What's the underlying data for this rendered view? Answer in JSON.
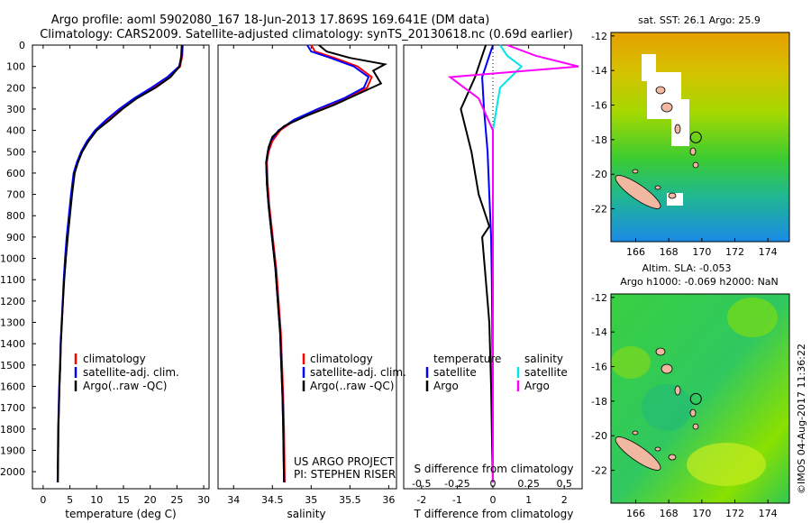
{
  "header": {
    "line1": "Argo profile: aoml 5902080_167 18-Jun-2013 17.869S 169.641E (DM data)",
    "line2": "Climatology: CARS2009. Satellite-adjusted climatology: synTS_20130618.nc (0.69d earlier)"
  },
  "colors": {
    "climatology": "#ff0000",
    "satellite": "#0000ff",
    "argo": "#000000",
    "salinity_satellite": "#00e5e5",
    "salinity_argo": "#ff00ff"
  },
  "depth_axis": {
    "ticks": [
      0,
      100,
      200,
      300,
      400,
      500,
      600,
      700,
      800,
      900,
      1000,
      1100,
      1200,
      1300,
      1400,
      1500,
      1600,
      1700,
      1800,
      1900,
      2000
    ],
    "range": [
      0,
      2080
    ]
  },
  "temperature_panel": {
    "xlabel": "temperature (deg C)",
    "xticks": [
      0,
      5,
      10,
      15,
      20,
      25,
      30
    ],
    "xlim": [
      -2,
      31
    ],
    "legend": [
      "climatology",
      "satellite-adj. clim.",
      "Argo(..raw -QC)"
    ]
  },
  "salinity_panel": {
    "xlabel": "salinity",
    "xticks": [
      34,
      34.5,
      35,
      35.5,
      36
    ],
    "tick_labels": [
      "34",
      "34.5",
      "35",
      "35.5",
      "36"
    ],
    "xlim": [
      33.8,
      36.1
    ],
    "legend": [
      "climatology",
      "satellite-adj. clim.",
      "Argo(..raw -QC)"
    ],
    "credit1": "US ARGO PROJECT",
    "credit2": "PI: STEPHEN RISER"
  },
  "difference_panel": {
    "s_label": "S difference from climatology",
    "t_label": "T difference from climatology",
    "s_ticks": [
      "-0.5",
      "-0.25",
      "0",
      "0.25",
      "0.5"
    ],
    "s_tick_values": [
      -0.5,
      -0.25,
      0,
      0.25,
      0.5
    ],
    "t_ticks": [
      "-2",
      "-1",
      "0",
      "1",
      "2"
    ],
    "t_tick_values": [
      -2,
      -1,
      0,
      1,
      2
    ],
    "legend_temperature": "temperature",
    "legend_salinity": "salinity",
    "legend_satellite": "satellite",
    "legend_argo": "Argo"
  },
  "sst_map": {
    "title": "sat. SST: 26.1  Argo: 25.9",
    "lon_ticks": [
      166,
      168,
      170,
      172,
      174
    ],
    "lat_ticks": [
      -12,
      -14,
      -16,
      -18,
      -20,
      -22
    ],
    "lon_range": [
      164.5,
      175.3
    ],
    "lat_range": [
      -23.9,
      -11.8
    ],
    "float_position": {
      "lon": 169.641,
      "lat": -17.869
    }
  },
  "sla_map": {
    "title1": "Altim. SLA: -0.053",
    "title2": "Argo h1000: -0.069 h2000: NaN",
    "lon_ticks": [
      166,
      168,
      170,
      172,
      174
    ],
    "lat_ticks": [
      -12,
      -14,
      -16,
      -18,
      -20,
      -22
    ],
    "lon_range": [
      164.5,
      175.3
    ],
    "lat_range": [
      -23.9,
      -11.8
    ],
    "float_position": {
      "lon": 169.641,
      "lat": -17.869
    }
  },
  "imos_credit": "©IMOS 04-Aug-2017 11:36:22",
  "chart_data": [
    {
      "type": "line",
      "title": "",
      "xlabel": "temperature (deg C)",
      "ylabel": "",
      "xlim": [
        -2,
        31
      ],
      "ylim": [
        2080,
        0
      ],
      "series": [
        {
          "name": "climatology",
          "x": [
            26.1,
            26.0,
            25.6,
            23.5,
            20.5,
            17.3,
            14.5,
            12.0,
            9.8,
            8.3,
            7.2,
            6.4,
            5.8,
            5.3,
            4.9,
            4.5,
            4.2,
            3.9,
            3.7,
            3.5,
            3.3,
            3.2,
            3.05,
            2.95,
            2.85,
            2.75
          ],
          "y": [
            0,
            50,
            100,
            150,
            200,
            250,
            300,
            350,
            400,
            450,
            500,
            550,
            600,
            700,
            800,
            900,
            1000,
            1100,
            1200,
            1300,
            1400,
            1500,
            1600,
            1700,
            1800,
            2050
          ]
        },
        {
          "name": "satellite-adj. clim.",
          "x": [
            26.0,
            25.9,
            25.4,
            23.2,
            20.2,
            17.0,
            14.2,
            11.8,
            9.7,
            8.2,
            7.1,
            6.3,
            5.7,
            5.2,
            4.8,
            4.4,
            4.1,
            3.85,
            3.65,
            3.45,
            3.25,
            3.15,
            3.0,
            2.9,
            2.8,
            2.7
          ],
          "y": [
            0,
            50,
            100,
            150,
            200,
            250,
            300,
            350,
            400,
            450,
            500,
            550,
            600,
            700,
            800,
            900,
            1000,
            1100,
            1200,
            1300,
            1400,
            1500,
            1600,
            1700,
            1800,
            2050
          ]
        },
        {
          "name": "Argo(..raw -QC)",
          "x": [
            25.9,
            25.8,
            25.5,
            23.8,
            21.0,
            17.5,
            14.8,
            12.5,
            10.0,
            8.5,
            7.3,
            6.5,
            5.9,
            5.4,
            5.0,
            4.6,
            4.25,
            3.95,
            3.7,
            3.5,
            3.3,
            3.2,
            3.05,
            2.95,
            2.85,
            2.75
          ],
          "y": [
            0,
            50,
            100,
            150,
            200,
            250,
            300,
            350,
            400,
            450,
            500,
            550,
            600,
            700,
            800,
            900,
            1000,
            1100,
            1200,
            1300,
            1400,
            1500,
            1600,
            1700,
            1800,
            2050
          ]
        }
      ]
    },
    {
      "type": "line",
      "title": "",
      "xlabel": "salinity",
      "ylabel": "",
      "xlim": [
        33.8,
        36.1
      ],
      "ylim": [
        2080,
        0
      ],
      "series": [
        {
          "name": "climatology",
          "x": [
            35.0,
            35.05,
            35.3,
            35.6,
            35.78,
            35.72,
            35.45,
            35.1,
            34.8,
            34.6,
            34.5,
            34.45,
            34.43,
            34.44,
            34.46,
            34.49,
            34.52,
            34.55,
            34.57,
            34.59,
            34.61,
            34.62,
            34.63,
            34.64,
            34.65,
            34.66
          ],
          "y": [
            0,
            30,
            60,
            100,
            150,
            200,
            250,
            300,
            350,
            400,
            450,
            500,
            550,
            650,
            750,
            850,
            950,
            1050,
            1150,
            1250,
            1350,
            1450,
            1550,
            1650,
            1800,
            2050
          ]
        },
        {
          "name": "satellite-adj. clim.",
          "x": [
            34.95,
            35.0,
            35.25,
            35.55,
            35.74,
            35.68,
            35.42,
            35.08,
            34.78,
            34.58,
            34.48,
            34.44,
            34.42,
            34.43,
            34.45,
            34.48,
            34.51,
            34.54,
            34.56,
            34.58,
            34.6,
            34.61,
            34.62,
            34.63,
            34.64,
            34.65
          ],
          "y": [
            0,
            30,
            60,
            100,
            150,
            200,
            250,
            300,
            350,
            400,
            450,
            500,
            550,
            650,
            750,
            850,
            950,
            1050,
            1150,
            1250,
            1350,
            1450,
            1550,
            1650,
            1800,
            2050
          ]
        },
        {
          "name": "Argo(..raw -QC)",
          "x": [
            35.1,
            35.2,
            35.5,
            35.95,
            35.8,
            35.9,
            35.6,
            35.3,
            34.95,
            34.65,
            34.5,
            34.45,
            34.42,
            34.43,
            34.45,
            34.48,
            34.51,
            34.54,
            34.56,
            34.58,
            34.6,
            34.61,
            34.62,
            34.63,
            34.64,
            34.65
          ],
          "y": [
            0,
            30,
            60,
            90,
            120,
            180,
            230,
            280,
            330,
            380,
            430,
            480,
            550,
            650,
            750,
            850,
            950,
            1050,
            1150,
            1250,
            1350,
            1450,
            1550,
            1650,
            1800,
            2050
          ]
        }
      ]
    },
    {
      "type": "line",
      "title": "",
      "xlabel": "T difference from climatology",
      "ylabel": "",
      "xlim": [
        -2.5,
        2.5
      ],
      "ylim": [
        2080,
        0
      ],
      "series": [
        {
          "name": "temperature satellite",
          "x": [
            0.0,
            -0.1,
            -0.3,
            -0.25,
            -0.15,
            -0.1,
            -0.05,
            -0.03,
            -0.02,
            -0.01,
            0.0,
            0.0,
            0.0,
            0.0
          ],
          "y": [
            0,
            50,
            150,
            300,
            500,
            700,
            900,
            1100,
            1300,
            1500,
            1700,
            1900,
            2000,
            2050
          ]
        },
        {
          "name": "temperature Argo",
          "x": [
            -0.2,
            -0.3,
            -0.5,
            -0.9,
            -0.6,
            -0.4,
            -0.2,
            -0.1,
            -0.3,
            -0.2,
            -0.1,
            -0.05,
            -0.02,
            0.0
          ],
          "y": [
            0,
            50,
            150,
            300,
            500,
            700,
            800,
            850,
            900,
            1100,
            1300,
            1600,
            1900,
            2050
          ]
        },
        {
          "name": "salinity satellite",
          "x": [
            0.05,
            0.1,
            0.2,
            0.05,
            0.0,
            0.0,
            0.0,
            0.0,
            0.0,
            0.0,
            0.0,
            0.0,
            0.0,
            0.0
          ],
          "y": [
            0,
            50,
            100,
            200,
            400,
            600,
            800,
            1000,
            1200,
            1400,
            1600,
            1800,
            2000,
            2050
          ]
        },
        {
          "name": "salinity Argo",
          "x": [
            0.1,
            0.3,
            0.6,
            -0.3,
            -0.1,
            0.0,
            0.0,
            0.0,
            0.0,
            0.0,
            0.0,
            0.0,
            0.0,
            0.0
          ],
          "y": [
            0,
            50,
            100,
            150,
            250,
            400,
            600,
            800,
            1000,
            1200,
            1400,
            1600,
            1800,
            2050
          ]
        }
      ]
    }
  ]
}
